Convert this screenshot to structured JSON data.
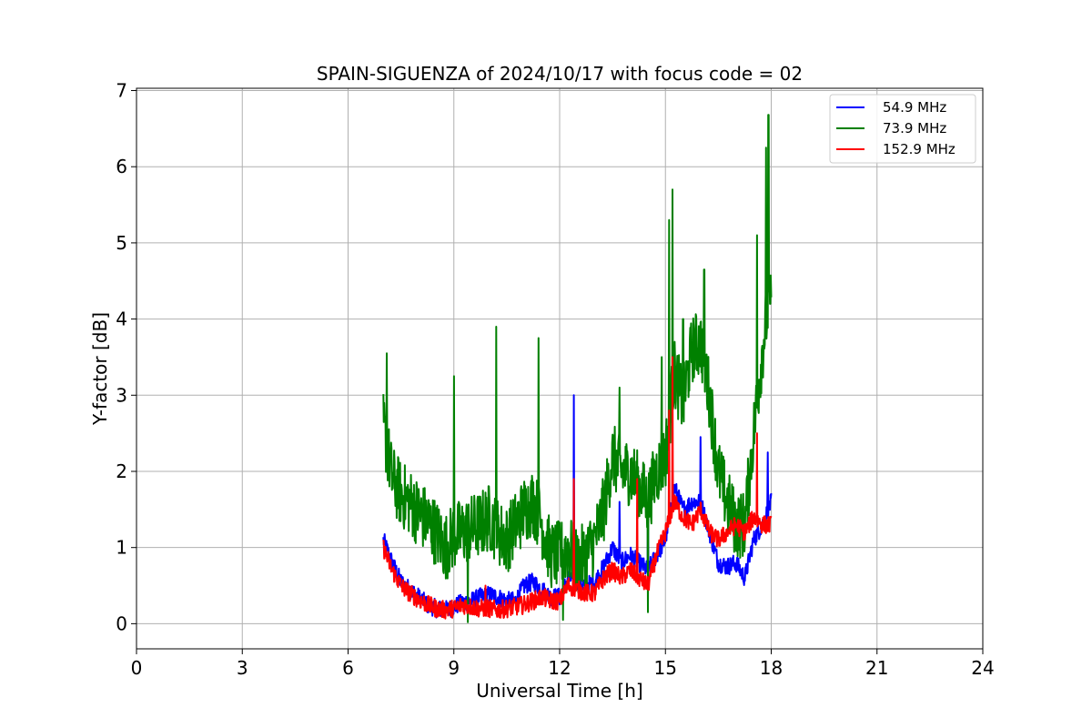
{
  "chart_data": {
    "type": "line",
    "title": "SPAIN-SIGUENZA of 2024/10/17 with focus code = 02",
    "xlabel": "Universal Time [h]",
    "ylabel": "Y-factor [dB]",
    "xlim": [
      0,
      24
    ],
    "ylim": [
      -0.33,
      7.03
    ],
    "xticks": [
      0,
      3,
      6,
      9,
      12,
      15,
      18,
      21,
      24
    ],
    "yticks": [
      0,
      1,
      2,
      3,
      4,
      5,
      6,
      7
    ],
    "grid": true,
    "legend_position": "top-right",
    "series": [
      {
        "name": "54.9 MHz",
        "legend_label": "  54.9 MHz",
        "color": "#0000ff",
        "x": [
          7.0,
          7.25,
          7.5,
          7.75,
          8.0,
          8.25,
          8.5,
          8.75,
          9.0,
          9.25,
          9.5,
          9.75,
          10.0,
          10.25,
          10.5,
          10.75,
          11.0,
          11.25,
          11.5,
          11.75,
          12.0,
          12.25,
          12.5,
          12.75,
          13.0,
          13.25,
          13.5,
          13.75,
          14.0,
          14.25,
          14.5,
          14.75,
          15.0,
          15.25,
          15.5,
          15.75,
          16.0,
          16.25,
          16.5,
          16.75,
          17.0,
          17.25,
          17.5,
          17.75,
          18.0
        ],
        "y": [
          1.1,
          0.8,
          0.55,
          0.45,
          0.35,
          0.25,
          0.2,
          0.18,
          0.22,
          0.28,
          0.3,
          0.35,
          0.38,
          0.35,
          0.3,
          0.3,
          0.5,
          0.55,
          0.45,
          0.35,
          0.35,
          0.6,
          0.55,
          0.5,
          0.55,
          0.75,
          1.0,
          0.8,
          0.9,
          0.8,
          0.7,
          0.9,
          1.1,
          1.8,
          1.5,
          1.6,
          1.6,
          1.2,
          0.8,
          0.75,
          0.8,
          0.6,
          1.1,
          1.3,
          1.6
        ],
        "spread": 0.12,
        "spikes": [
          [
            12.4,
            3.0
          ],
          [
            15.2,
            2.0
          ],
          [
            16.0,
            2.45
          ],
          [
            17.9,
            2.25
          ],
          [
            13.7,
            1.6
          ],
          [
            14.5,
            1.5
          ]
        ]
      },
      {
        "name": "73.9 MHz",
        "legend_label": "  73.9 MHz",
        "color": "#008000",
        "x": [
          7.0,
          7.25,
          7.5,
          7.75,
          8.0,
          8.25,
          8.5,
          8.75,
          9.0,
          9.25,
          9.5,
          9.75,
          10.0,
          10.25,
          10.5,
          10.75,
          11.0,
          11.25,
          11.5,
          11.75,
          12.0,
          12.25,
          12.5,
          12.75,
          13.0,
          13.25,
          13.5,
          13.75,
          14.0,
          14.25,
          14.5,
          14.75,
          15.0,
          15.25,
          15.5,
          15.75,
          16.0,
          16.25,
          16.5,
          16.75,
          17.0,
          17.25,
          17.5,
          17.75,
          18.0
        ],
        "y": [
          2.6,
          1.9,
          1.7,
          1.6,
          1.45,
          1.35,
          1.2,
          1.0,
          1.15,
          1.2,
          1.25,
          1.3,
          1.4,
          1.2,
          1.1,
          1.3,
          1.5,
          1.6,
          1.3,
          0.9,
          0.9,
          1.0,
          0.8,
          0.9,
          1.1,
          1.5,
          2.2,
          2.0,
          2.0,
          1.8,
          1.6,
          2.0,
          2.2,
          3.3,
          2.9,
          3.6,
          3.7,
          3.0,
          2.0,
          1.6,
          1.3,
          1.3,
          2.5,
          3.6,
          4.5
        ],
        "spread": 0.45,
        "spikes": [
          [
            7.1,
            3.55
          ],
          [
            9.0,
            3.25
          ],
          [
            10.2,
            3.9
          ],
          [
            11.4,
            3.75
          ],
          [
            13.7,
            3.1
          ],
          [
            14.9,
            3.5
          ],
          [
            15.2,
            5.7
          ],
          [
            15.1,
            5.3
          ],
          [
            15.5,
            4.0
          ],
          [
            16.1,
            4.65
          ],
          [
            17.6,
            5.1
          ],
          [
            17.85,
            6.25
          ],
          [
            17.92,
            6.68
          ],
          [
            17.97,
            4.2
          ],
          [
            14.5,
            0.15
          ],
          [
            9.4,
            0.02
          ],
          [
            12.1,
            0.05
          ]
        ]
      },
      {
        "name": "152.9 MHz",
        "legend_label": "152.9 MHz",
        "color": "#ff0000",
        "x": [
          7.0,
          7.25,
          7.5,
          7.75,
          8.0,
          8.25,
          8.5,
          8.75,
          9.0,
          9.25,
          9.5,
          9.75,
          10.0,
          10.25,
          10.5,
          10.75,
          11.0,
          11.25,
          11.5,
          11.75,
          12.0,
          12.25,
          12.5,
          12.75,
          13.0,
          13.25,
          13.5,
          13.75,
          14.0,
          14.25,
          14.5,
          14.75,
          15.0,
          15.25,
          15.5,
          15.75,
          16.0,
          16.25,
          16.5,
          16.75,
          17.0,
          17.25,
          17.5,
          17.75,
          18.0
        ],
        "y": [
          1.0,
          0.7,
          0.5,
          0.4,
          0.32,
          0.25,
          0.2,
          0.18,
          0.2,
          0.25,
          0.22,
          0.2,
          0.2,
          0.18,
          0.2,
          0.22,
          0.25,
          0.3,
          0.35,
          0.3,
          0.3,
          0.5,
          0.45,
          0.4,
          0.4,
          0.6,
          0.7,
          0.6,
          0.7,
          0.6,
          0.5,
          0.9,
          1.2,
          1.6,
          1.4,
          1.3,
          1.5,
          1.2,
          1.1,
          1.2,
          1.3,
          1.2,
          1.4,
          1.3,
          1.3
        ],
        "spread": 0.12,
        "spikes": [
          [
            15.2,
            3.5
          ],
          [
            15.1,
            2.8
          ],
          [
            17.6,
            2.5
          ],
          [
            12.4,
            1.9
          ],
          [
            14.2,
            1.9
          ],
          [
            9.9,
            0.5
          ]
        ]
      }
    ]
  }
}
